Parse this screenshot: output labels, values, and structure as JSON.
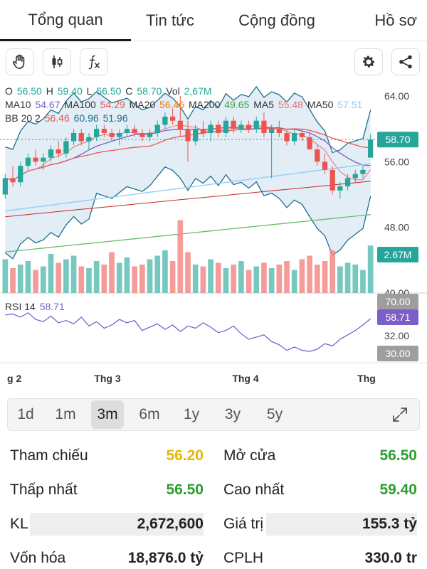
{
  "tabs": [
    "Tổng quan",
    "Tin tức",
    "Cộng đồng",
    "Hồ sơ"
  ],
  "toolbar": {
    "icons": [
      "hand-icon",
      "candlestick-icon",
      "function-icon",
      "gear-icon",
      "share-icon"
    ]
  },
  "ohlc": {
    "o_label": "O",
    "o": "56.50",
    "h_label": "H",
    "h": "59.40",
    "l_label": "L",
    "l": "56.50",
    "c_label": "C",
    "c": "58.70",
    "vol_label": "Vol",
    "vol": "2,67M"
  },
  "ma": {
    "ma10_label": "MA10",
    "ma10": "54.67",
    "ma100_label": "MA100",
    "ma100": "54.29",
    "ma20_label": "MA20",
    "ma20": "56.46",
    "ma200_label": "MA200",
    "ma200": "49.65",
    "ma5_label": "MA5",
    "ma5": "55.48",
    "ma50_label": "MA50",
    "ma50": "57.51"
  },
  "bb": {
    "label": "BB 20 2",
    "v1": "56.46",
    "v2": "60.96",
    "v3": "51.96"
  },
  "rsi": {
    "label": "RSI 14",
    "value": "58.71"
  },
  "price_axis": [
    "64.00",
    "56.00",
    "48.00",
    "40.00"
  ],
  "rsi_axis": [
    "70.00",
    "32.00",
    "30.00"
  ],
  "badges": {
    "price": "58.70",
    "volume": "2.67M",
    "rsi": "58.71"
  },
  "time_axis": [
    "g 2",
    "Thg 3",
    "Thg 4",
    "Thg"
  ],
  "ranges": [
    "1d",
    "1m",
    "3m",
    "6m",
    "1y",
    "3y",
    "5y"
  ],
  "active_range": "3m",
  "stats": {
    "ref_label": "Tham chiếu",
    "ref": "56.20",
    "open_label": "Mở cửa",
    "open": "56.50",
    "low_label": "Thấp nhất",
    "low": "56.50",
    "high_label": "Cao nhất",
    "high": "59.40",
    "vol_label": "KL",
    "vol": "2,672,600",
    "value_label": "Giá trị",
    "value": "155.3 tỷ",
    "cap_label": "Vốn hóa",
    "cap": "18,876.0 tỷ",
    "shares_label": "CPLH",
    "shares": "330.0 tr"
  },
  "colors": {
    "up": "#26a69a",
    "down": "#ef5350",
    "ref": "#e6b800",
    "green": "#2e9e2e",
    "purple": "#7b5fc7",
    "orange": "#f57c00"
  },
  "chart_data": {
    "type": "candlestick",
    "price_ylim": [
      40,
      66
    ],
    "candles": [
      [
        52.0,
        54.5,
        51.5,
        54.0
      ],
      [
        54.0,
        55.5,
        53.0,
        53.5
      ],
      [
        53.5,
        56.0,
        53.0,
        55.5
      ],
      [
        55.5,
        57.0,
        55.0,
        56.5
      ],
      [
        56.5,
        57.5,
        55.5,
        56.0
      ],
      [
        56.0,
        57.0,
        55.0,
        56.5
      ],
      [
        56.5,
        58.0,
        56.0,
        57.5
      ],
      [
        57.5,
        58.5,
        56.5,
        57.0
      ],
      [
        57.0,
        59.0,
        56.5,
        58.5
      ],
      [
        58.5,
        60.0,
        58.0,
        59.5
      ],
      [
        59.5,
        60.0,
        58.0,
        58.5
      ],
      [
        58.5,
        59.5,
        57.5,
        59.0
      ],
      [
        59.0,
        60.5,
        58.5,
        60.0
      ],
      [
        60.0,
        60.5,
        59.0,
        59.5
      ],
      [
        59.5,
        60.0,
        58.5,
        59.0
      ],
      [
        59.0,
        60.0,
        58.0,
        59.5
      ],
      [
        59.5,
        60.5,
        59.0,
        60.0
      ],
      [
        60.0,
        60.5,
        59.0,
        59.5
      ],
      [
        59.5,
        60.0,
        58.5,
        59.0
      ],
      [
        59.0,
        60.0,
        58.5,
        59.5
      ],
      [
        59.5,
        61.0,
        59.0,
        60.5
      ],
      [
        60.5,
        62.0,
        60.0,
        61.5
      ],
      [
        61.5,
        62.5,
        60.5,
        61.0
      ],
      [
        61.0,
        64.0,
        59.0,
        60.0
      ],
      [
        60.0,
        61.0,
        56.0,
        58.5
      ],
      [
        58.5,
        60.5,
        58.0,
        60.0
      ],
      [
        60.0,
        61.0,
        59.0,
        59.5
      ],
      [
        59.5,
        61.0,
        58.5,
        60.5
      ],
      [
        60.5,
        61.0,
        59.0,
        59.5
      ],
      [
        59.5,
        61.5,
        59.0,
        61.0
      ],
      [
        61.0,
        61.5,
        59.5,
        60.0
      ],
      [
        60.0,
        61.0,
        59.5,
        60.5
      ],
      [
        60.5,
        61.0,
        59.5,
        60.0
      ],
      [
        60.0,
        61.5,
        59.5,
        61.0
      ],
      [
        61.0,
        62.0,
        59.0,
        59.5
      ],
      [
        59.5,
        60.5,
        54.0,
        60.0
      ],
      [
        60.0,
        61.0,
        59.0,
        59.5
      ],
      [
        59.5,
        60.0,
        58.0,
        58.5
      ],
      [
        58.5,
        60.0,
        58.0,
        59.5
      ],
      [
        59.5,
        60.0,
        58.5,
        59.0
      ],
      [
        59.0,
        59.5,
        57.5,
        57.5
      ],
      [
        57.5,
        58.0,
        55.5,
        56.0
      ],
      [
        56.0,
        57.0,
        54.5,
        55.0
      ],
      [
        55.0,
        55.5,
        52.0,
        52.5
      ],
      [
        52.5,
        53.5,
        51.5,
        53.0
      ],
      [
        53.0,
        54.5,
        52.5,
        54.0
      ],
      [
        54.0,
        55.0,
        53.5,
        54.5
      ],
      [
        54.5,
        55.5,
        54.0,
        55.0
      ],
      [
        56.5,
        59.4,
        56.5,
        58.7
      ]
    ],
    "volumes_m": [
      1.9,
      1.4,
      1.6,
      1.8,
      1.3,
      1.5,
      2.2,
      1.7,
      1.9,
      2.1,
      1.5,
      1.4,
      1.8,
      1.6,
      2.3,
      1.7,
      2.0,
      1.5,
      1.6,
      1.9,
      2.1,
      2.4,
      1.8,
      4.1,
      2.3,
      1.6,
      1.5,
      1.9,
      1.7,
      1.4,
      1.6,
      1.8,
      1.3,
      1.5,
      1.7,
      1.4,
      1.6,
      1.8,
      1.3,
      1.9,
      2.1,
      1.6,
      1.8,
      2.4,
      1.5,
      1.7,
      1.6,
      1.3,
      2.67
    ],
    "rsi": [
      62,
      63,
      60,
      64,
      58,
      56,
      61,
      55,
      57,
      54,
      60,
      52,
      56,
      50,
      53,
      58,
      55,
      57,
      48,
      51,
      54,
      49,
      53,
      47,
      52,
      50,
      55,
      51,
      46,
      48,
      52,
      45,
      40,
      42,
      44,
      38,
      35,
      30,
      33,
      30,
      29,
      31,
      36,
      34,
      40,
      44,
      48,
      53,
      58.71
    ],
    "rsi_ylim": [
      20,
      80
    ]
  }
}
